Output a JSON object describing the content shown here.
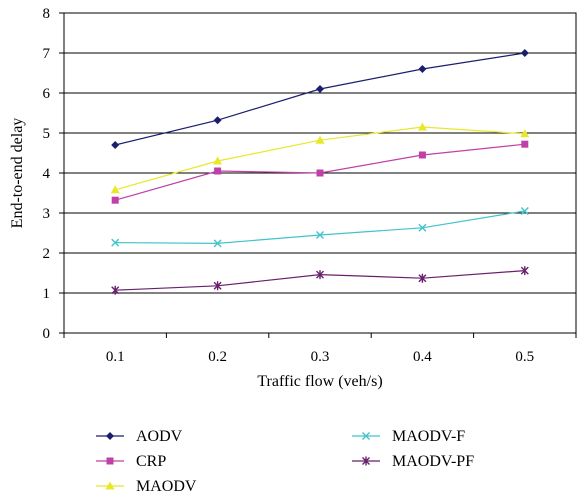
{
  "chart_data": {
    "type": "line",
    "title": "",
    "xlabel": "Traffic flow (veh/s)",
    "ylabel": "End-to-end delay",
    "categories": [
      "0.1",
      "0.2",
      "0.3",
      "0.4",
      "0.5"
    ],
    "ylim": [
      0,
      8
    ],
    "yticks": [
      "0",
      "1",
      "2",
      "3",
      "4",
      "5",
      "6",
      "7",
      "8"
    ],
    "grid": "horizontal",
    "legend_position": "bottom",
    "series": [
      {
        "name": "AODV",
        "values": [
          4.7,
          5.32,
          6.1,
          6.6,
          7.0
        ],
        "color": "#1b1f6b",
        "marker": "diamond"
      },
      {
        "name": "CRP",
        "values": [
          3.32,
          4.05,
          4.0,
          4.45,
          4.72
        ],
        "color": "#c040a8",
        "marker": "square"
      },
      {
        "name": "MAODV",
        "values": [
          3.58,
          4.3,
          4.82,
          5.15,
          4.98
        ],
        "color": "#e8e828",
        "marker": "triangle"
      },
      {
        "name": "MAODV-F",
        "values": [
          2.26,
          2.24,
          2.45,
          2.63,
          3.05
        ],
        "color": "#40c4cc",
        "marker": "x"
      },
      {
        "name": "MAODV-PF",
        "values": [
          1.07,
          1.18,
          1.46,
          1.37,
          1.56
        ],
        "color": "#6a1f6e",
        "marker": "star"
      }
    ]
  }
}
